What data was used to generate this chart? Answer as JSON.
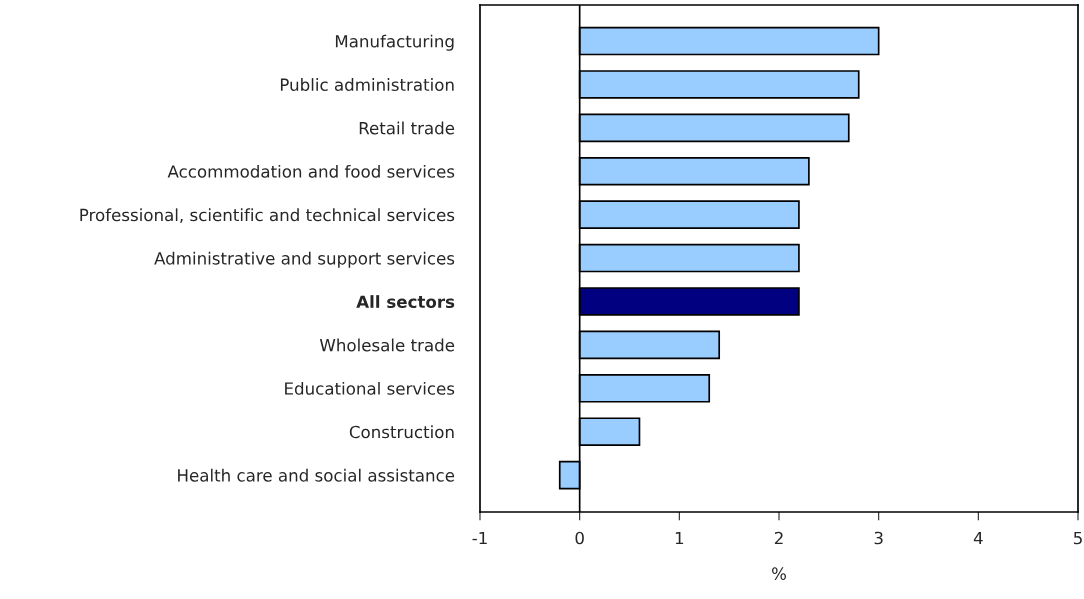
{
  "chart_data": {
    "type": "bar",
    "orientation": "horizontal",
    "categories": [
      "Manufacturing",
      "Public administration",
      "Retail trade",
      "Accommodation and food services",
      "Professional, scientific and technical services",
      "Administrative and support services",
      "All sectors",
      "Wholesale trade",
      "Educational services",
      "Construction",
      "Health care and social assistance"
    ],
    "values": [
      3.0,
      2.8,
      2.7,
      2.3,
      2.2,
      2.2,
      2.2,
      1.4,
      1.3,
      0.6,
      -0.2
    ],
    "colors": [
      "#99ccff",
      "#99ccff",
      "#99ccff",
      "#99ccff",
      "#99ccff",
      "#99ccff",
      "#000080",
      "#99ccff",
      "#99ccff",
      "#99ccff",
      "#99ccff"
    ],
    "xlim": [
      -1,
      5
    ],
    "xticks": [
      -1,
      0,
      1,
      2,
      3,
      4,
      5
    ],
    "xlabel": "%",
    "ref_lines": [
      {
        "axis": "x",
        "value": 0,
        "color": "#000000"
      }
    ]
  }
}
